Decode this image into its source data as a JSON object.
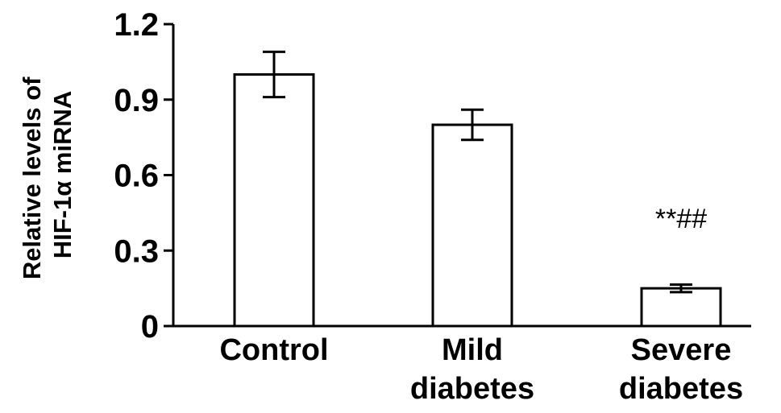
{
  "chart_data": {
    "type": "bar",
    "categories": [
      [
        "Control"
      ],
      [
        "Mild",
        "diabetes"
      ],
      [
        "Severe",
        "diabetes"
      ]
    ],
    "values": [
      1.0,
      0.8,
      0.15
    ],
    "error": [
      0.09,
      0.06,
      0.015
    ],
    "annotations": [
      "",
      "",
      "**##"
    ],
    "ylabel": [
      "Relative levels of",
      "HIF-1α miRNA"
    ],
    "ylim": [
      0,
      1.2
    ],
    "yticks": [
      0,
      0.3,
      0.6,
      0.9,
      1.2
    ],
    "ytick_labels": [
      "0",
      "0.3",
      "0.6",
      "0.9",
      "1.2"
    ],
    "grid": false,
    "colors": {
      "bar_fill": "#ffffff",
      "bar_stroke": "#000000"
    }
  }
}
